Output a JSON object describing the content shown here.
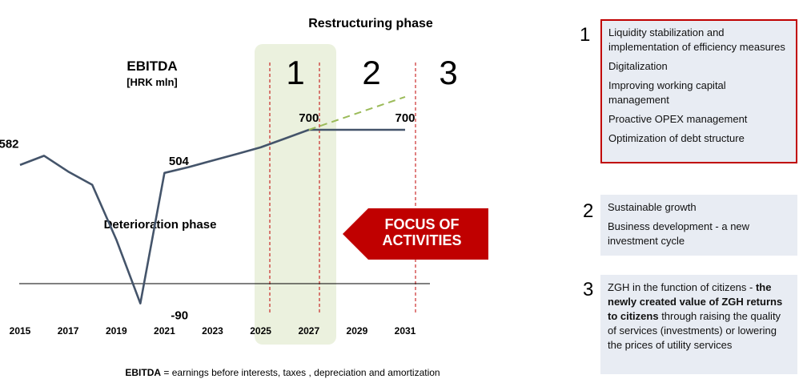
{
  "chart_data": {
    "type": "line",
    "title": "EBITDA",
    "subtitle": "[HRK mln]",
    "top_label": "Restructuring  phase",
    "phase_numbers": [
      "1",
      "2",
      "3"
    ],
    "x_tick_labels": [
      "2015",
      "2017",
      "2019",
      "2021",
      "2023",
      "2025",
      "2027",
      "2029",
      "2031"
    ],
    "series": [
      {
        "x": [
          2015,
          2016,
          2017,
          2018,
          2019,
          2020,
          2021,
          2022,
          2023,
          2024,
          2025,
          2026,
          2027,
          2028,
          2029,
          2030,
          2031
        ],
        "values": [
          540,
          582,
          510,
          450,
          200,
          -90,
          504,
          530,
          560,
          590,
          620,
          660,
          700,
          700,
          700,
          700,
          700
        ],
        "color": "#44546a"
      },
      {
        "x": [
          2027,
          2031
        ],
        "values": [
          700,
          850
        ],
        "color": "#9bbb59",
        "dashed": true
      }
    ],
    "data_labels": [
      {
        "x": 2015,
        "y": 582,
        "text": "582"
      },
      {
        "x": 2021,
        "y": -90,
        "text": "-90"
      },
      {
        "x": 2022,
        "y": 504,
        "text": "504"
      },
      {
        "x": 2027,
        "y": 700,
        "text": "700"
      },
      {
        "x": 2031,
        "y": 700,
        "text": "700"
      }
    ],
    "annotations": {
      "deterioration": "Deterioration phase",
      "focus": [
        "FOCUS OF",
        "ACTIVITIES"
      ],
      "footnote_bold": "EBITDA",
      "footnote_rest": " = earnings before interests, taxes , depreciation and amortization"
    },
    "highlight_range": [
      2025,
      2027
    ],
    "colors": {
      "focus_arrow": "#c00000",
      "highlight": "#ebf1de",
      "guides": "#c00000"
    }
  },
  "panels": {
    "p1": {
      "number": "1",
      "items": [
        "Liquidity stabilization and implementation of efficiency measures",
        "Digitalization",
        "Improving working capital management",
        "Proactive OPEX management",
        "Optimization of debt structure"
      ]
    },
    "p2": {
      "number": "2",
      "items": [
        "Sustainable growth",
        "Business development - a new investment cycle"
      ]
    },
    "p3": {
      "number": "3",
      "text_a": "ZGH in the function of citizens - ",
      "text_b": "the newly created value of ZGH returns to citizens",
      "text_c": " through raising the quality of services (investments) or lowering the prices of utility services"
    }
  }
}
